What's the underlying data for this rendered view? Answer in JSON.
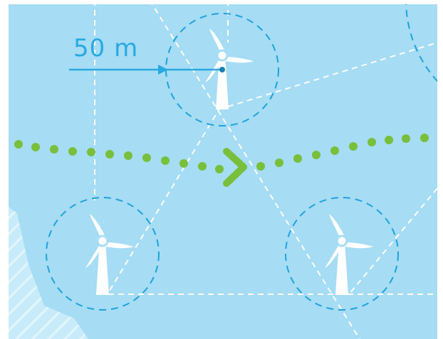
{
  "scale_label": "50 m",
  "colors": {
    "sea": "#a6dcf4",
    "sea_light": "#c8ebfa",
    "scale_blue": "#29a9e1",
    "circle_blue": "#1fa3dc",
    "dashed_white": "#ffffff",
    "dots_green": "#78bf3c",
    "turbine": "#ffffff",
    "border": "#ffffff"
  },
  "icons": [
    "wind-turbine-icon",
    "wind-turbine-icon",
    "wind-turbine-icon",
    "chevron-right-icon"
  ]
}
